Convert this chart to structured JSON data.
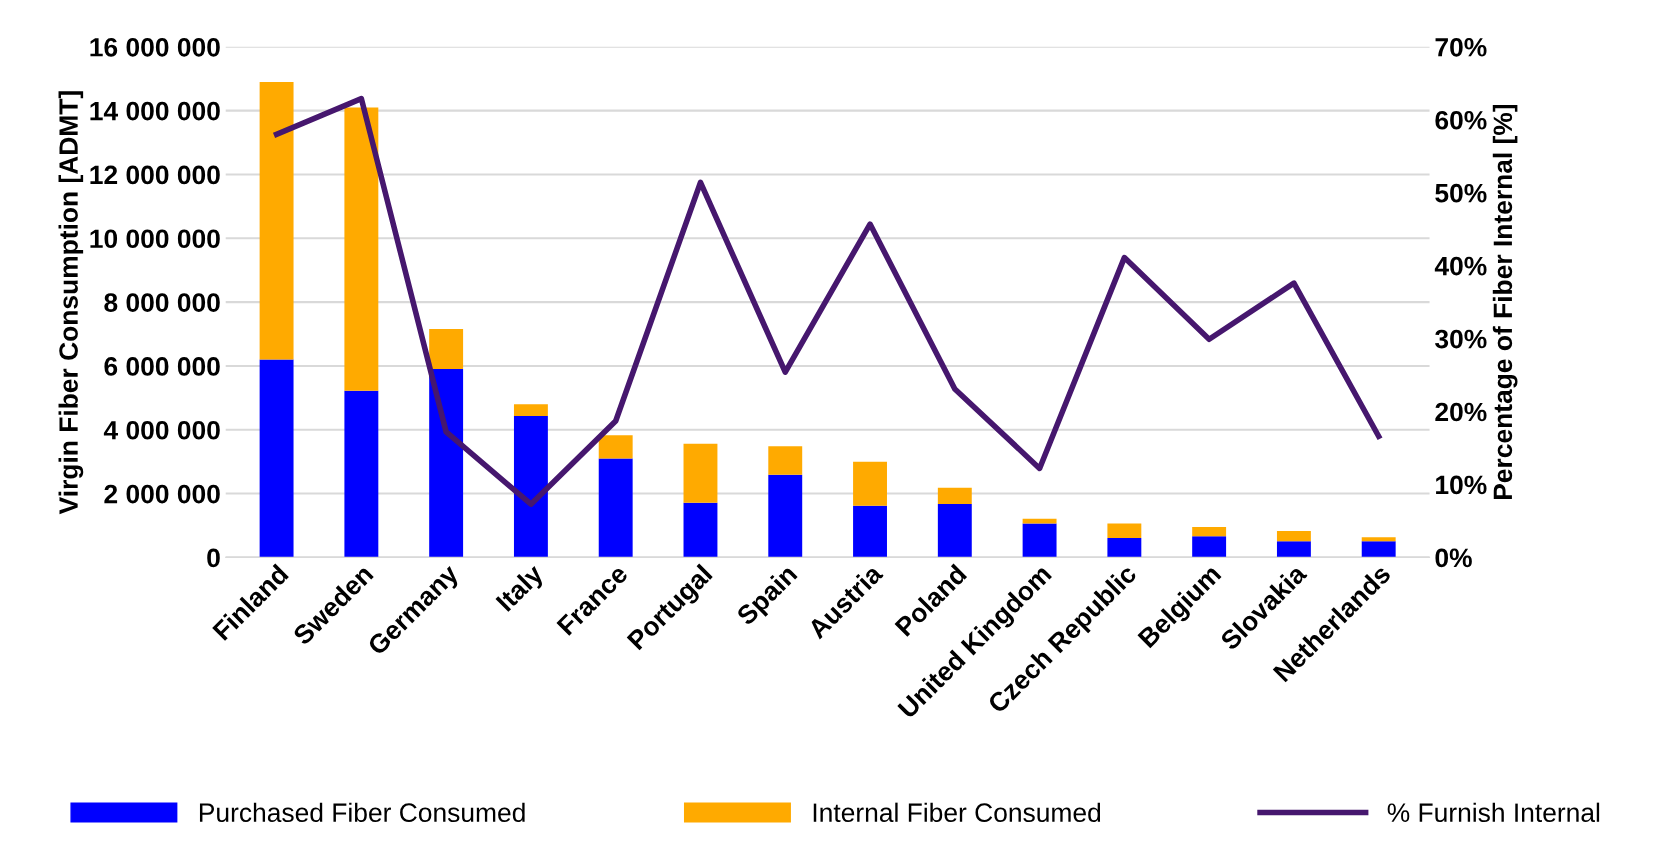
{
  "chart_data": {
    "type": "bar",
    "stacked": true,
    "categories": [
      "Finland",
      "Sweden",
      "Germany",
      "Italy",
      "France",
      "Portugal",
      "Spain",
      "Austria",
      "Poland",
      "United Kingdom",
      "Czech Republic",
      "Belgium",
      "Slovakia",
      "Netherlands"
    ],
    "ylabel": "Virgin Fiber Consumption [ADMT]",
    "y2label": "Percentage of Fiber Internal [%]",
    "ylim": [
      0,
      16000000
    ],
    "yticks": [
      {
        "value": 0,
        "label": "0"
      },
      {
        "value": 2000000,
        "label": "2 000 000"
      },
      {
        "value": 4000000,
        "label": "4 000 000"
      },
      {
        "value": 6000000,
        "label": "6 000 000"
      },
      {
        "value": 8000000,
        "label": "8 000 000"
      },
      {
        "value": 10000000,
        "label": "10 000 000"
      },
      {
        "value": 12000000,
        "label": "12 000 000"
      },
      {
        "value": 14000000,
        "label": "14 000 000"
      },
      {
        "value": 16000000,
        "label": "16 000 000"
      }
    ],
    "y2lim": [
      0,
      70
    ],
    "y2ticks": [
      {
        "value": 0,
        "label": "0%"
      },
      {
        "value": 10,
        "label": "10%"
      },
      {
        "value": 20,
        "label": "20%"
      },
      {
        "value": 30,
        "label": "30%"
      },
      {
        "value": 40,
        "label": "40%"
      },
      {
        "value": 50,
        "label": "50%"
      },
      {
        "value": 60,
        "label": "60%"
      },
      {
        "value": 70,
        "label": "70%"
      }
    ],
    "grid": "y",
    "legend": "bottom",
    "series": [
      {
        "name": "Purchased Fiber Consumed",
        "color": "#0000ff",
        "values": [
          6200000,
          5220000,
          5900000,
          4430000,
          3100000,
          1710000,
          2590000,
          1620000,
          1670000,
          1060000,
          610000,
          660000,
          510000,
          510000
        ]
      },
      {
        "name": "Internal Fiber Consumed",
        "color": "#ffaa00",
        "values": [
          8700000,
          8880000,
          1260000,
          370000,
          730000,
          1850000,
          890000,
          1380000,
          510000,
          150000,
          450000,
          290000,
          320000,
          120000
        ]
      },
      {
        "name": "% Furnish Internal",
        "type": "line",
        "axis": "y2",
        "color": "#46176e",
        "values": [
          58.0,
          62.9,
          17.2,
          7.3,
          18.7,
          51.4,
          25.4,
          45.7,
          23.1,
          12.2,
          41.1,
          29.9,
          37.6,
          16.6
        ]
      }
    ]
  }
}
